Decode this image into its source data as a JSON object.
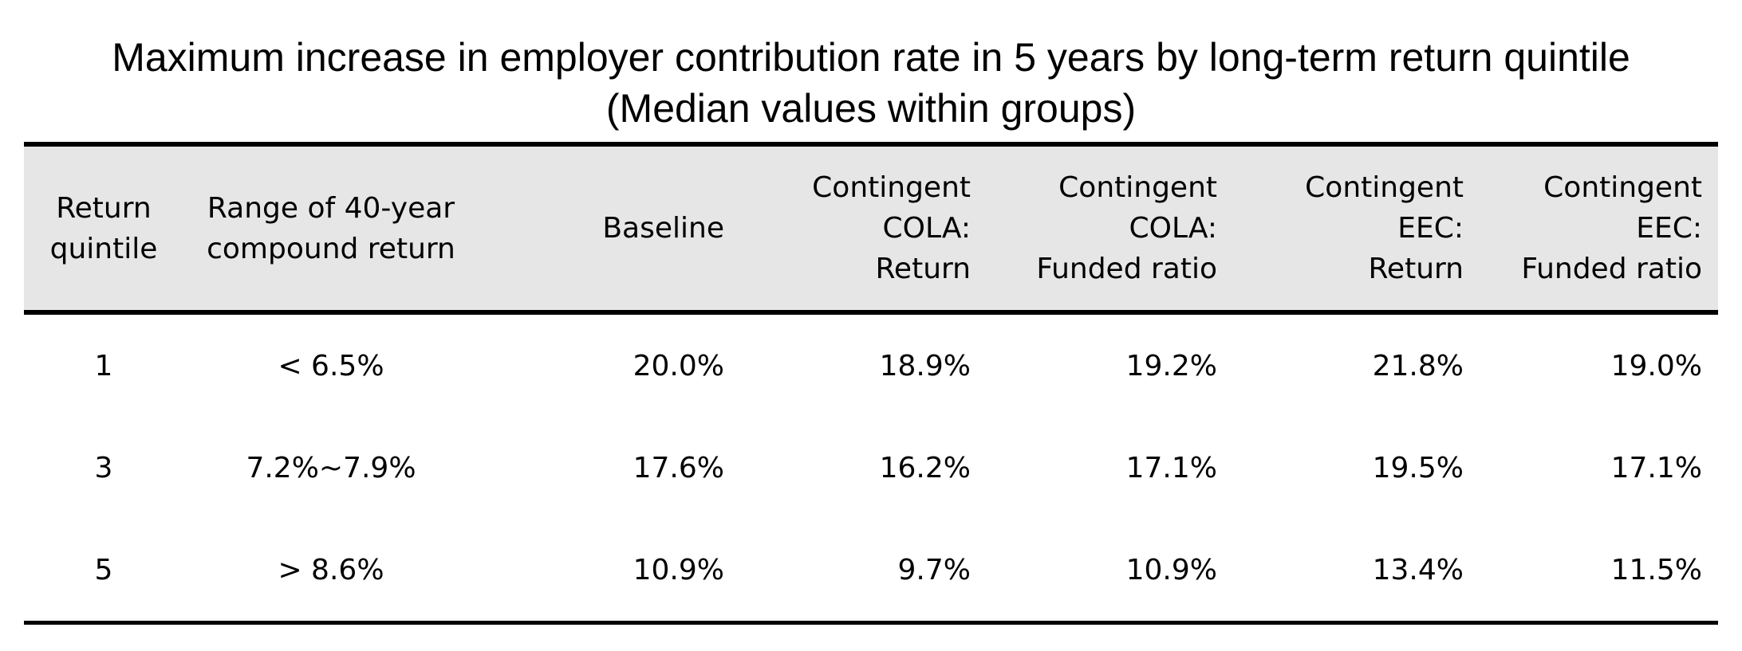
{
  "chart_data": {
    "type": "table",
    "title_line1": "Maximum increase in employer contribution rate in 5 years by long-term return quintile",
    "title_line2": "(Median values within groups)",
    "columns": [
      [
        "Return",
        "quintile"
      ],
      [
        "Range of 40-year",
        "compound return"
      ],
      [
        "Baseline"
      ],
      [
        "Contingent",
        "COLA:",
        "Return"
      ],
      [
        "Contingent",
        "COLA:",
        "Funded ratio"
      ],
      [
        "Contingent",
        "EEC:",
        "Return"
      ],
      [
        "Contingent",
        "EEC:",
        "Funded ratio"
      ]
    ],
    "rows": [
      [
        "1",
        "< 6.5%",
        "20.0%",
        "18.9%",
        "19.2%",
        "21.8%",
        "19.0%"
      ],
      [
        "3",
        "7.2%~7.9%",
        "17.6%",
        "16.2%",
        "17.1%",
        "19.5%",
        "17.1%"
      ],
      [
        "5",
        "> 8.6%",
        "10.9%",
        "9.7%",
        "10.9%",
        "13.4%",
        "11.5%"
      ]
    ]
  }
}
